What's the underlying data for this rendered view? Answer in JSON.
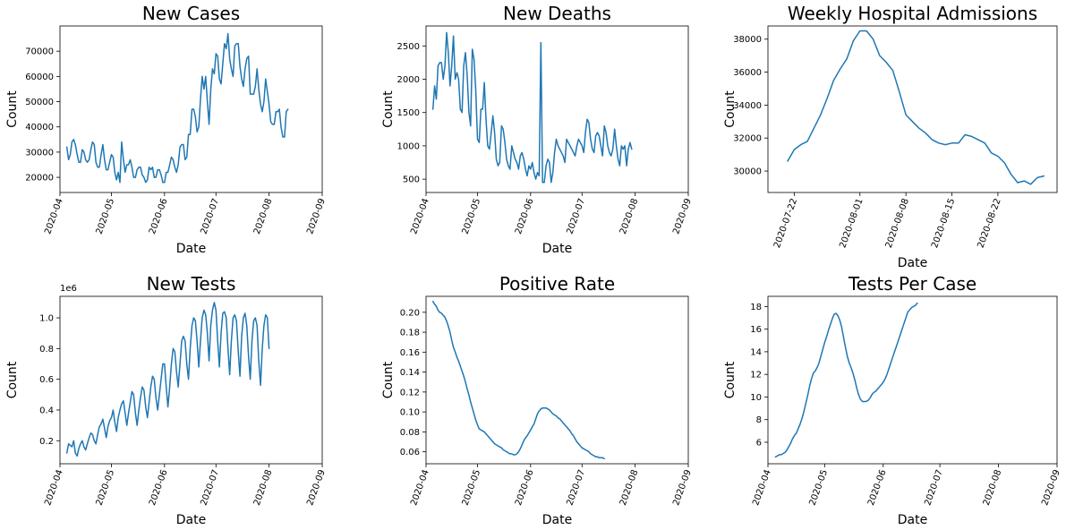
{
  "style": {
    "line_color": "#1f77b4",
    "axis_color": "#000000",
    "background": "#ffffff"
  },
  "chart_data": [
    {
      "type": "line",
      "title": "New Cases",
      "xlabel": "Date",
      "ylabel": "Count",
      "xticks": [
        "2020-04",
        "2020-05",
        "2020-06",
        "2020-07",
        "2020-08",
        "2020-09"
      ],
      "xlim": [
        "2020-04-01",
        "2020-09-01"
      ],
      "yticks": [
        20000,
        30000,
        40000,
        50000,
        60000,
        70000
      ],
      "ylim": [
        14000,
        80000
      ],
      "grid": false,
      "series": [
        {
          "x_start": "2020-04-05",
          "values": [
            32000,
            27000,
            29000,
            34000,
            35000,
            33000,
            29000,
            26000,
            26000,
            31000,
            30000,
            27000,
            26000,
            27000,
            31000,
            34000,
            33000,
            26000,
            24000,
            24000,
            29000,
            33000,
            27000,
            23000,
            23000,
            26000,
            29000,
            28000,
            22000,
            19000,
            22000,
            18000,
            34000,
            27000,
            22000,
            25000,
            25000,
            27000,
            24000,
            20000,
            20000,
            23000,
            24000,
            24000,
            21000,
            20000,
            18000,
            19000,
            24000,
            23000,
            24000,
            20000,
            20000,
            23000,
            23000,
            21000,
            18000,
            18000,
            22000,
            22000,
            25000,
            28000,
            27000,
            24000,
            22000,
            25000,
            32000,
            33000,
            33000,
            27000,
            28000,
            37000,
            37000,
            47000,
            47000,
            44000,
            38000,
            40000,
            51000,
            60000,
            55000,
            60000,
            50000,
            41000,
            55000,
            63000,
            61000,
            69000,
            68000,
            59000,
            57000,
            65000,
            73000,
            71000,
            77000,
            67000,
            63000,
            60000,
            72000,
            73000,
            73000,
            64000,
            59000,
            56000,
            63000,
            67000,
            68000,
            53000,
            53000,
            53000,
            56000,
            63000,
            55000,
            49000,
            46000,
            50000,
            59000,
            54000,
            49000,
            42000,
            41000,
            41000,
            46000,
            46000,
            47000,
            40000,
            36000,
            36000,
            46000,
            47000
          ]
        }
      ]
    },
    {
      "type": "line",
      "title": "New Deaths",
      "xlabel": "Date",
      "ylabel": "Count",
      "xticks": [
        "2020-04",
        "2020-05",
        "2020-06",
        "2020-07",
        "2020-08",
        "2020-09"
      ],
      "xlim": [
        "2020-04-01",
        "2020-09-01"
      ],
      "yticks": [
        500,
        1000,
        1500,
        2000,
        2500
      ],
      "ylim": [
        300,
        2800
      ],
      "grid": false,
      "series": [
        {
          "x_start": "2020-04-05",
          "values": [
            1550,
            1900,
            1700,
            2200,
            2250,
            2250,
            2000,
            2200,
            2700,
            2400,
            1900,
            2200,
            2650,
            2000,
            2100,
            2000,
            1550,
            1500,
            2200,
            2400,
            2050,
            1500,
            1300,
            2450,
            2300,
            1850,
            1100,
            1050,
            1550,
            1550,
            1950,
            1400,
            1000,
            950,
            1200,
            1450,
            1200,
            800,
            700,
            750,
            1300,
            1250,
            1050,
            800,
            700,
            650,
            1000,
            900,
            800,
            750,
            650,
            850,
            900,
            800,
            650,
            550,
            700,
            650,
            750,
            600,
            500,
            600,
            550,
            2550,
            450,
            450,
            700,
            800,
            750,
            450,
            600,
            900,
            1100,
            1000,
            950,
            900,
            850,
            750,
            1100,
            1050,
            1000,
            950,
            900,
            850,
            1000,
            1100,
            1050,
            1000,
            900,
            1200,
            1400,
            1350,
            1100,
            950,
            900,
            1150,
            1200,
            1150,
            1000,
            850,
            1300,
            1200,
            1000,
            900,
            850,
            950,
            1250,
            1000,
            800,
            700,
            1000,
            950,
            1000,
            700,
            950,
            1050,
            950
          ]
        }
      ]
    },
    {
      "type": "line",
      "title": "Weekly Hospital Admissions",
      "xlabel": "Date",
      "ylabel": "Count",
      "xticks": [
        "2020-07-22",
        "2020-08-01",
        "2020-08-08",
        "2020-08-15",
        "2020-08-22"
      ],
      "xlim": [
        "2020-07-18",
        "2020-08-31"
      ],
      "yticks": [
        30000,
        32000,
        34000,
        36000,
        38000
      ],
      "ylim": [
        28700,
        38800
      ],
      "grid": false,
      "series": [
        {
          "x_start": "2020-07-21",
          "values": [
            30600,
            31300,
            31600,
            31800,
            32600,
            33400,
            34400,
            35500,
            36200,
            36800,
            37900,
            38500,
            38500,
            38000,
            37000,
            36600,
            36100,
            34800,
            33400,
            33000,
            32600,
            32300,
            31900,
            31700,
            31600,
            31700,
            31700,
            32200,
            32100,
            31900,
            31700,
            31100,
            30900,
            30500,
            29800,
            29300,
            29400,
            29200,
            29600,
            29700
          ]
        }
      ]
    },
    {
      "type": "line",
      "title": "New Tests",
      "xlabel": "Date",
      "ylabel": "Count",
      "offset_label": "1e6",
      "xticks": [
        "2020-04",
        "2020-05",
        "2020-06",
        "2020-07",
        "2020-08",
        "2020-09"
      ],
      "xlim": [
        "2020-04-01",
        "2020-09-01"
      ],
      "yticks": [
        0.2,
        0.4,
        0.6,
        0.8,
        1.0
      ],
      "ytick_labels": [
        "0.2",
        "0.4",
        "0.6",
        "0.8",
        "1.0"
      ],
      "ylim": [
        0.05,
        1.14
      ],
      "grid": false,
      "series": [
        {
          "x_start": "2020-04-05",
          "values": [
            0.12,
            0.18,
            0.17,
            0.16,
            0.2,
            0.12,
            0.1,
            0.15,
            0.18,
            0.2,
            0.16,
            0.14,
            0.18,
            0.22,
            0.25,
            0.24,
            0.2,
            0.18,
            0.24,
            0.29,
            0.31,
            0.34,
            0.28,
            0.22,
            0.29,
            0.33,
            0.35,
            0.4,
            0.32,
            0.26,
            0.35,
            0.4,
            0.44,
            0.46,
            0.38,
            0.3,
            0.38,
            0.45,
            0.52,
            0.5,
            0.38,
            0.3,
            0.4,
            0.48,
            0.55,
            0.53,
            0.42,
            0.35,
            0.45,
            0.55,
            0.62,
            0.6,
            0.48,
            0.4,
            0.5,
            0.6,
            0.7,
            0.7,
            0.55,
            0.42,
            0.55,
            0.7,
            0.8,
            0.78,
            0.65,
            0.55,
            0.7,
            0.85,
            0.88,
            0.85,
            0.7,
            0.6,
            0.8,
            0.95,
            1.0,
            0.98,
            0.85,
            0.68,
            0.85,
            1.0,
            1.05,
            1.02,
            0.9,
            0.72,
            0.95,
            1.05,
            1.1,
            1.05,
            0.85,
            0.68,
            0.9,
            1.03,
            1.04,
            1.0,
            0.8,
            0.63,
            0.85,
            1.0,
            1.02,
            0.98,
            0.78,
            0.62,
            0.88,
            1.0,
            1.03,
            0.95,
            0.75,
            0.6,
            0.85,
            0.98,
            1.0,
            0.95,
            0.72,
            0.56,
            0.8,
            0.95,
            1.02,
            1.0,
            0.8
          ]
        }
      ]
    },
    {
      "type": "line",
      "title": "Positive Rate",
      "xlabel": "Date",
      "ylabel": "Count",
      "xticks": [
        "2020-04",
        "2020-05",
        "2020-06",
        "2020-07",
        "2020-08",
        "2020-09"
      ],
      "xlim": [
        "2020-04-01",
        "2020-09-01"
      ],
      "yticks": [
        0.06,
        0.08,
        0.1,
        0.12,
        0.14,
        0.16,
        0.18,
        0.2
      ],
      "ytick_labels": [
        "0.06",
        "0.08",
        "0.10",
        "0.12",
        "0.14",
        "0.16",
        "0.18",
        "0.20"
      ],
      "ylim": [
        0.048,
        0.216
      ],
      "grid": false,
      "series": [
        {
          "x_start": "2020-04-05",
          "values": [
            0.211,
            0.208,
            0.206,
            0.202,
            0.2,
            0.199,
            0.197,
            0.195,
            0.191,
            0.186,
            0.18,
            0.172,
            0.165,
            0.16,
            0.155,
            0.151,
            0.146,
            0.141,
            0.136,
            0.13,
            0.123,
            0.117,
            0.11,
            0.104,
            0.098,
            0.092,
            0.087,
            0.083,
            0.082,
            0.081,
            0.08,
            0.078,
            0.076,
            0.074,
            0.072,
            0.07,
            0.068,
            0.067,
            0.066,
            0.065,
            0.064,
            0.062,
            0.061,
            0.06,
            0.059,
            0.058,
            0.058,
            0.057,
            0.057,
            0.058,
            0.06,
            0.063,
            0.067,
            0.071,
            0.074,
            0.076,
            0.079,
            0.082,
            0.085,
            0.088,
            0.093,
            0.098,
            0.101,
            0.103,
            0.104,
            0.104,
            0.104,
            0.103,
            0.102,
            0.1,
            0.098,
            0.097,
            0.096,
            0.094,
            0.093,
            0.091,
            0.089,
            0.087,
            0.085,
            0.083,
            0.081,
            0.078,
            0.076,
            0.073,
            0.07,
            0.068,
            0.066,
            0.064,
            0.063,
            0.062,
            0.061,
            0.06,
            0.058,
            0.057,
            0.056,
            0.055,
            0.055,
            0.054,
            0.054,
            0.054,
            0.053
          ]
        }
      ]
    },
    {
      "type": "line",
      "title": "Tests Per Case",
      "xlabel": "Date",
      "ylabel": "Count",
      "xticks": [
        "2020-04",
        "2020-05",
        "2020-06",
        "2020-07",
        "2020-08",
        "2020-09"
      ],
      "xlim": [
        "2020-04-01",
        "2020-09-01"
      ],
      "yticks": [
        6,
        8,
        10,
        12,
        14,
        16,
        18
      ],
      "ylim": [
        4.1,
        18.9
      ],
      "grid": false,
      "series": [
        {
          "x_start": "2020-04-05",
          "values": [
            4.7,
            4.8,
            4.9,
            4.9,
            5.0,
            5.1,
            5.3,
            5.6,
            5.9,
            6.3,
            6.6,
            6.8,
            7.2,
            7.6,
            8.1,
            8.7,
            9.4,
            10.1,
            10.9,
            11.6,
            12.1,
            12.3,
            12.6,
            13.0,
            13.6,
            14.2,
            14.8,
            15.3,
            15.9,
            16.4,
            16.9,
            17.3,
            17.4,
            17.2,
            16.8,
            16.2,
            15.3,
            14.4,
            13.6,
            13.0,
            12.6,
            12.1,
            11.5,
            10.8,
            10.2,
            9.8,
            9.6,
            9.6,
            9.6,
            9.7,
            9.9,
            10.2,
            10.4,
            10.5,
            10.7,
            10.9,
            11.1,
            11.3,
            11.6,
            12.0,
            12.5,
            13.0,
            13.5,
            14.0,
            14.5,
            15.0,
            15.5,
            16.0,
            16.5,
            17.0,
            17.5,
            17.7,
            17.9,
            18.0,
            18.1,
            18.3
          ]
        }
      ]
    }
  ]
}
